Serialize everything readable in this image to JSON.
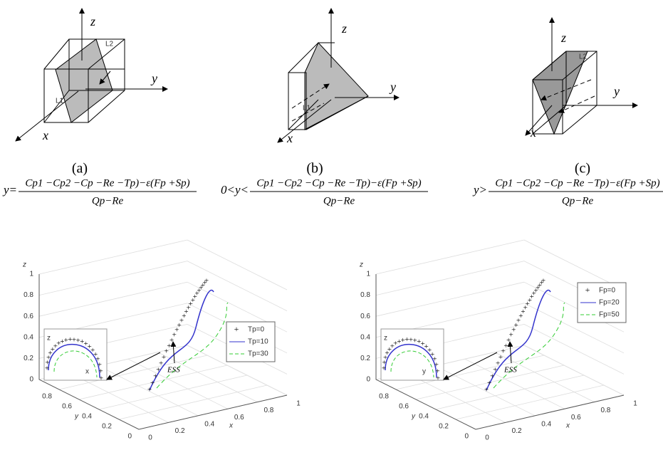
{
  "panels": [
    {
      "label": "(a)",
      "axes": {
        "x": "x",
        "y": "y",
        "z": "z"
      },
      "lines": [
        "L1",
        "L2"
      ],
      "formula": {
        "lhs": "y=",
        "numerator": "Cp1 −Cp2 −Cp −Re −Tp)−ε(Fp +Sp)",
        "denominator": "Qp−Re"
      }
    },
    {
      "label": "(b)",
      "axes": {
        "x": "x",
        "y": "y",
        "z": "z"
      },
      "lines": [
        "L1"
      ],
      "formula": {
        "lhs": "0<y<",
        "numerator": "Cp1 −Cp2 −Cp −Re −Tp)−ε(Fp +Sp)",
        "denominator": "Qp−Re"
      }
    },
    {
      "label": "(c)",
      "axes": {
        "x": "x",
        "y": "y",
        "z": "z"
      },
      "lines": [
        "L2"
      ],
      "formula": {
        "lhs": "y>",
        "numerator": "Cp1 −Cp2 −Cp −Re −Tp)−ε(Fp +Sp)",
        "denominator": "Qp−Re"
      }
    }
  ],
  "plots": [
    {
      "axis_labels": {
        "x": "x",
        "y": "y",
        "z": "z"
      },
      "zticks": [
        0,
        0.2,
        0.4,
        0.6,
        0.8,
        1
      ],
      "yticks": [
        0,
        0.2,
        0.4,
        0.6,
        0.8
      ],
      "xticks": [
        0,
        0.2,
        0.4,
        0.6,
        0.8,
        1
      ],
      "legend": [
        "Tp=0",
        "Tp=10",
        "Tp=30"
      ],
      "annotation": "ESS",
      "inset_labels": [
        "z",
        "x"
      ]
    },
    {
      "axis_labels": {
        "x": "x",
        "y": "y",
        "z": "z"
      },
      "zticks": [
        0,
        0.2,
        0.4,
        0.6,
        0.8,
        1
      ],
      "yticks": [
        0,
        0.2,
        0.4,
        0.6,
        0.8
      ],
      "xticks": [
        0,
        0.2,
        0.4,
        0.6,
        0.8,
        1
      ],
      "legend": [
        "Fp=0",
        "Fp=20",
        "Fp=50"
      ],
      "annotation": "ESS",
      "inset_labels": [
        "z",
        "y"
      ]
    }
  ]
}
